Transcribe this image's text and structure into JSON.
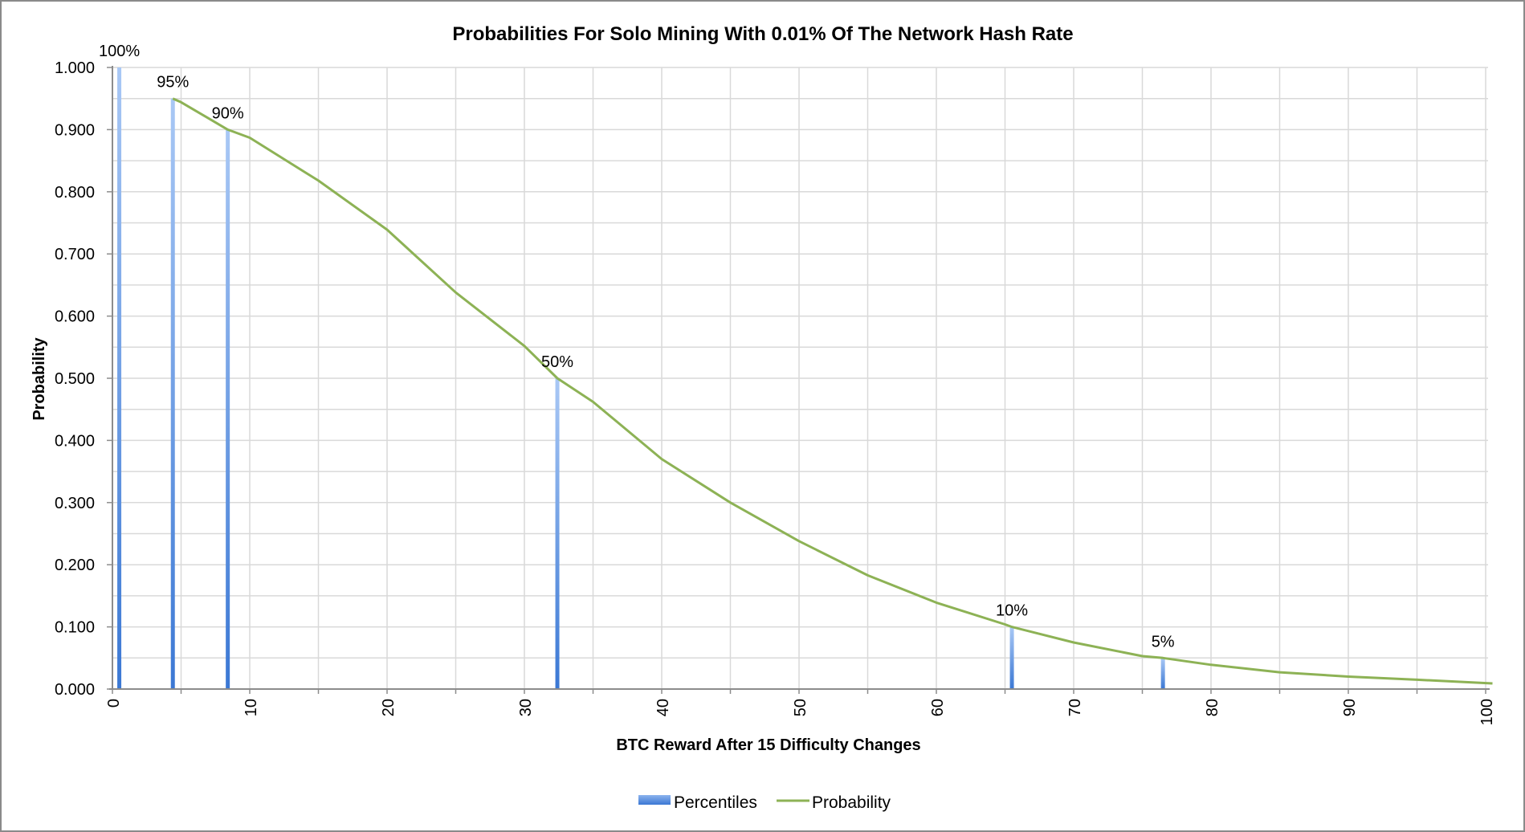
{
  "chart_data": {
    "type": "line",
    "title": "Probabilities For Solo Mining With 0.01% Of The Network Hash Rate",
    "xlabel": "BTC Reward After 15 Difficulty Changes",
    "ylabel": "Probability",
    "xlim": [
      0,
      100
    ],
    "ylim": [
      0,
      1
    ],
    "x_ticks": [
      "0",
      "10",
      "20",
      "30",
      "40",
      "50",
      "60",
      "70",
      "80",
      "90",
      "100"
    ],
    "y_ticks": [
      "0.000",
      "0.100",
      "0.200",
      "0.300",
      "0.400",
      "0.500",
      "0.600",
      "0.700",
      "0.800",
      "0.900",
      "1.000"
    ],
    "grid": true,
    "legend_position": "bottom",
    "legend": [
      "Percentiles",
      "Probability"
    ],
    "series": [
      {
        "name": "Probability",
        "type": "line",
        "color": "#8db255",
        "x": [
          4.4,
          5,
          8.4,
          10,
          15,
          20,
          25,
          30,
          32.4,
          35,
          40,
          45,
          50,
          55,
          60,
          65,
          65.5,
          70,
          75,
          76.5,
          80,
          85,
          90,
          95,
          100.5
        ],
        "values": [
          0.95,
          0.944,
          0.9,
          0.887,
          0.818,
          0.739,
          0.638,
          0.552,
          0.5,
          0.462,
          0.37,
          0.3,
          0.238,
          0.183,
          0.139,
          0.104,
          0.1,
          0.075,
          0.053,
          0.05,
          0.039,
          0.027,
          0.02,
          0.015,
          0.009
        ]
      },
      {
        "name": "Percentiles",
        "type": "bar",
        "color": "#4a86d8",
        "x": [
          0.5,
          4.4,
          8.4,
          32.4,
          65.5,
          76.5
        ],
        "values": [
          1.0,
          0.95,
          0.9,
          0.5,
          0.1,
          0.05
        ],
        "labels": [
          "100%",
          "95%",
          "90%",
          "50%",
          "10%",
          "5%"
        ]
      }
    ]
  }
}
